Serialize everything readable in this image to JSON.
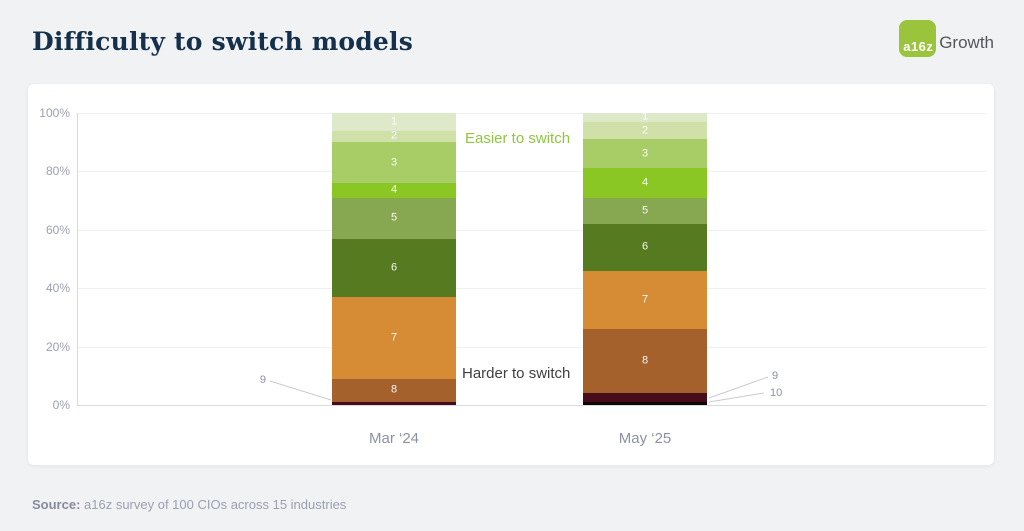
{
  "header": {
    "title": "Difficulty to switch models",
    "logo": {
      "badge_text": "a16z",
      "brand_text": "Growth",
      "badge_color": "#9ac43c"
    }
  },
  "chart_data": {
    "type": "bar",
    "stacked": true,
    "title": "Difficulty to switch models",
    "categories": [
      "Mar ‘24",
      "May ‘25"
    ],
    "value_unit": "percent of respondents",
    "ylim": [
      0,
      100
    ],
    "y_tick_labels": [
      "100%",
      "80%",
      "60%",
      "40%",
      "20%",
      "0%"
    ],
    "grid": true,
    "legend_position": "none",
    "rating_scale_note": "1 = easier to switch, 10 = harder to switch",
    "segments": [
      {
        "rating": "1",
        "color": "#dde9c9",
        "values": [
          6,
          3
        ]
      },
      {
        "rating": "2",
        "color": "#cfe0a9",
        "values": [
          4,
          6
        ]
      },
      {
        "rating": "3",
        "color": "#a8cd67",
        "values": [
          14,
          10
        ]
      },
      {
        "rating": "4",
        "color": "#8ac624",
        "values": [
          5,
          10
        ]
      },
      {
        "rating": "5",
        "color": "#87a750",
        "values": [
          14,
          9
        ]
      },
      {
        "rating": "6",
        "color": "#567a1f",
        "values": [
          20,
          16
        ]
      },
      {
        "rating": "7",
        "color": "#d68b35",
        "values": [
          28,
          20
        ]
      },
      {
        "rating": "8",
        "color": "#a4612c",
        "values": [
          8,
          22
        ]
      },
      {
        "rating": "9",
        "color": "#470c1c",
        "values": [
          1,
          3
        ],
        "label_outside": true
      },
      {
        "rating": "10",
        "color": "#120505",
        "values": [
          0,
          1
        ],
        "label_outside": true
      }
    ],
    "annotations": {
      "easier_label": "Easier to switch",
      "harder_label": "Harder to switch",
      "mar_rating9": "9",
      "may_rating9": "9",
      "may_rating10": "10"
    }
  },
  "source": {
    "label": "Source:",
    "text": " a16z survey of 100 CIOs across 15 industries"
  }
}
